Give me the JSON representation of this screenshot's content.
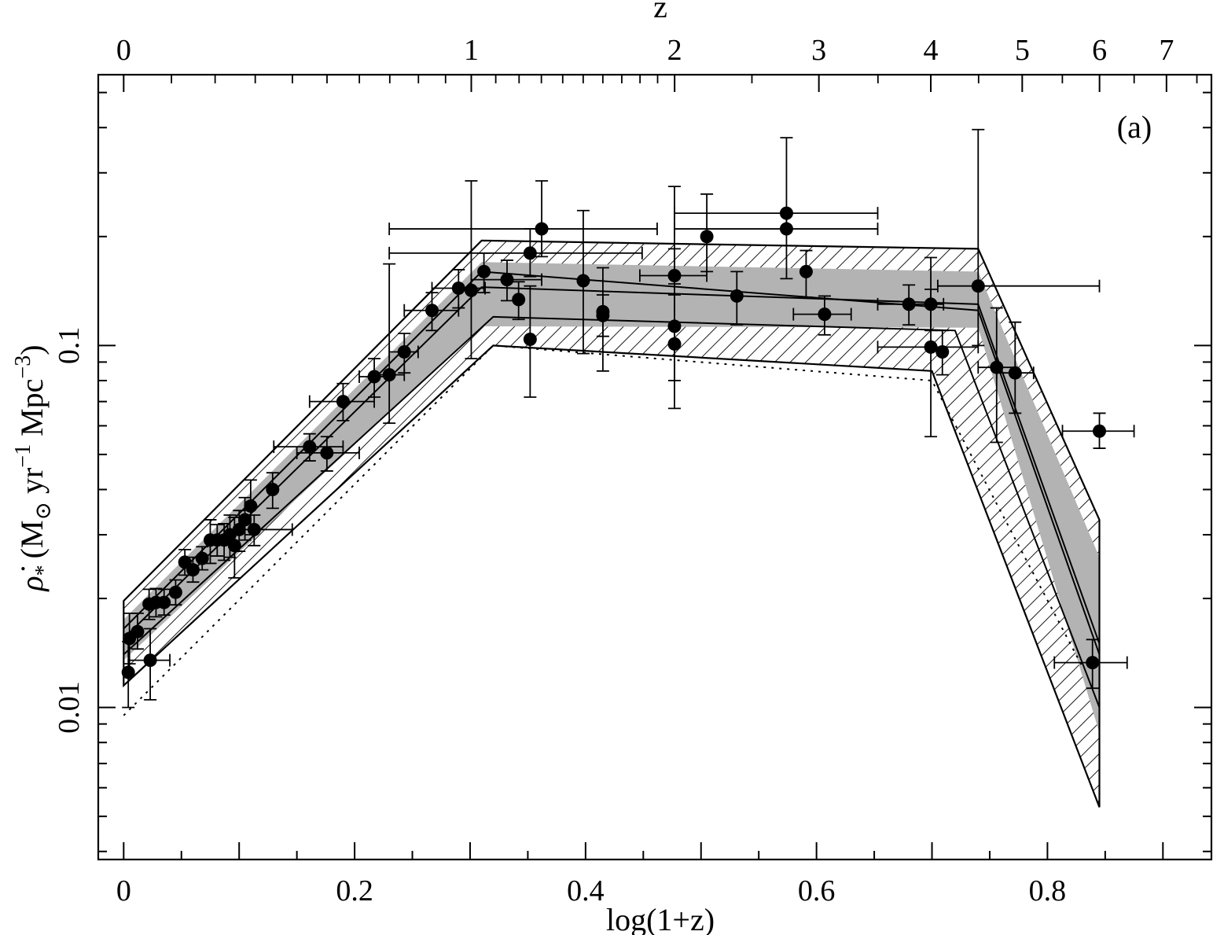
{
  "chart_data": {
    "type": "scatter",
    "title": "",
    "xlabel": "log(1+z)",
    "ylabel_parts": {
      "main": "ρ̇",
      "sub": "*",
      "units": "(M",
      "sun_sub": "⊙",
      "rest": " yr",
      "exp1": "−1",
      "mpc": " Mpc",
      "exp2": "−3",
      "close": ")"
    },
    "top_axis_label": "z",
    "panel_label": "(a)",
    "y_scale": "log",
    "xlim": [
      -0.022,
      0.942
    ],
    "ylim": [
      0.0038,
      0.56
    ],
    "x_ticks": [
      0,
      0.2,
      0.4,
      0.6,
      0.8
    ],
    "x_tick_labels": [
      "0",
      "0.2",
      "0.4",
      "0.6",
      "0.8"
    ],
    "y_tick_labels_shown": [
      {
        "value": 0.01,
        "label": "0.01"
      },
      {
        "value": 0.1,
        "label": "0.1"
      }
    ],
    "top_ticks_z": [
      0,
      1,
      2,
      3,
      4,
      5,
      6,
      7
    ],
    "top_tick_labels": [
      "0",
      "1",
      "2",
      "3",
      "4",
      "5",
      "6",
      "7"
    ],
    "points": [
      {
        "x": 0.004,
        "y": 0.0125,
        "ylo": 0.01,
        "yhi": 0.0152
      },
      {
        "x": 0.005,
        "y": 0.0155,
        "ylo": 0.0132,
        "yhi": 0.0182
      },
      {
        "x": 0.012,
        "y": 0.0162,
        "ylo": 0.0145,
        "yhi": 0.0182
      },
      {
        "x": 0.022,
        "y": 0.0193,
        "ylo": 0.0175,
        "yhi": 0.0212
      },
      {
        "x": 0.028,
        "y": 0.0195,
        "ylo": 0.0178,
        "yhi": 0.0213
      },
      {
        "x": 0.023,
        "y": 0.0135,
        "ylo": 0.0105,
        "yhi": 0.0165,
        "xlo": 0.005,
        "xhi": 0.04
      },
      {
        "x": 0.035,
        "y": 0.0195,
        "ylo": 0.018,
        "yhi": 0.0212
      },
      {
        "x": 0.045,
        "y": 0.0208,
        "ylo": 0.0192,
        "yhi": 0.0225
      },
      {
        "x": 0.053,
        "y": 0.0252,
        "ylo": 0.0232,
        "yhi": 0.0273
      },
      {
        "x": 0.06,
        "y": 0.024,
        "ylo": 0.0222,
        "yhi": 0.026
      },
      {
        "x": 0.068,
        "y": 0.0258,
        "ylo": 0.024,
        "yhi": 0.0278
      },
      {
        "x": 0.075,
        "y": 0.029,
        "ylo": 0.025,
        "yhi": 0.033
      },
      {
        "x": 0.081,
        "y": 0.029,
        "ylo": 0.0262,
        "yhi": 0.032
      },
      {
        "x": 0.087,
        "y": 0.029,
        "ylo": 0.0255,
        "yhi": 0.0322
      },
      {
        "x": 0.092,
        "y": 0.03,
        "ylo": 0.026,
        "yhi": 0.034
      },
      {
        "x": 0.096,
        "y": 0.028,
        "ylo": 0.0228,
        "yhi": 0.0335
      },
      {
        "x": 0.1,
        "y": 0.031,
        "ylo": 0.027,
        "yhi": 0.035
      },
      {
        "x": 0.105,
        "y": 0.033,
        "ylo": 0.029,
        "yhi": 0.038
      },
      {
        "x": 0.11,
        "y": 0.036,
        "ylo": 0.03,
        "yhi": 0.0425
      },
      {
        "x": 0.113,
        "y": 0.031,
        "ylo": 0.028,
        "yhi": 0.034,
        "xlo": 0.09,
        "xhi": 0.146
      },
      {
        "x": 0.129,
        "y": 0.04,
        "ylo": 0.0355,
        "yhi": 0.0445
      },
      {
        "x": 0.161,
        "y": 0.0525,
        "ylo": 0.048,
        "yhi": 0.057,
        "xlo": 0.13,
        "xhi": 0.19
      },
      {
        "x": 0.176,
        "y": 0.0505,
        "ylo": 0.045,
        "yhi": 0.056,
        "xlo": 0.15,
        "xhi": 0.204
      },
      {
        "x": 0.19,
        "y": 0.07,
        "ylo": 0.062,
        "yhi": 0.0785,
        "xlo": 0.161,
        "xhi": 0.217
      },
      {
        "x": 0.217,
        "y": 0.082,
        "ylo": 0.072,
        "yhi": 0.092,
        "xlo": 0.204,
        "xhi": 0.23
      },
      {
        "x": 0.23,
        "y": 0.083,
        "ylo": 0.061,
        "yhi": 0.168,
        "xlo": 0.217,
        "xhi": 0.243
      },
      {
        "x": 0.243,
        "y": 0.096,
        "ylo": 0.084,
        "yhi": 0.108,
        "xlo": 0.23,
        "xhi": 0.255
      },
      {
        "x": 0.267,
        "y": 0.125,
        "ylo": 0.11,
        "yhi": 0.14,
        "xlo": 0.243,
        "xhi": 0.29
      },
      {
        "x": 0.29,
        "y": 0.144,
        "ylo": 0.127,
        "yhi": 0.162,
        "xlo": 0.267,
        "xhi": 0.313
      },
      {
        "x": 0.301,
        "y": 0.142,
        "ylo": 0.092,
        "yhi": 0.285
      },
      {
        "x": 0.312,
        "y": 0.16,
        "ylo": 0.14,
        "yhi": 0.18
      },
      {
        "x": 0.332,
        "y": 0.152,
        "ylo": 0.133,
        "yhi": 0.172,
        "xlo": 0.301,
        "xhi": 0.362
      },
      {
        "x": 0.342,
        "y": 0.134,
        "ylo": 0.118,
        "yhi": 0.15
      },
      {
        "x": 0.352,
        "y": 0.18,
        "ylo": 0.155,
        "yhi": 0.21,
        "xlo": 0.23,
        "xhi": 0.449
      },
      {
        "x": 0.352,
        "y": 0.104,
        "ylo": 0.072,
        "yhi": 0.146
      },
      {
        "x": 0.362,
        "y": 0.21,
        "ylo": 0.176,
        "yhi": 0.285,
        "xlo": 0.23,
        "xhi": 0.462
      },
      {
        "x": 0.398,
        "y": 0.151,
        "ylo": 0.095,
        "yhi": 0.236
      },
      {
        "x": 0.415,
        "y": 0.124,
        "ylo": 0.085,
        "yhi": 0.164
      },
      {
        "x": 0.415,
        "y": 0.121,
        "ylo": 0.106,
        "yhi": 0.138
      },
      {
        "x": 0.477,
        "y": 0.156,
        "ylo": 0.138,
        "yhi": 0.275,
        "xlo": 0.447,
        "xhi": 0.505
      },
      {
        "x": 0.477,
        "y": 0.113,
        "ylo": 0.08,
        "yhi": 0.185
      },
      {
        "x": 0.477,
        "y": 0.101,
        "ylo": 0.067,
        "yhi": 0.148
      },
      {
        "x": 0.505,
        "y": 0.2,
        "ylo": 0.16,
        "yhi": 0.262
      },
      {
        "x": 0.531,
        "y": 0.137,
        "ylo": 0.114,
        "yhi": 0.16
      },
      {
        "x": 0.574,
        "y": 0.232,
        "ylo": 0.21,
        "yhi": 0.375,
        "xlo": 0.477,
        "xhi": 0.653
      },
      {
        "x": 0.574,
        "y": 0.21,
        "ylo": 0.153,
        "yhi": 0.235,
        "xlo": 0.477,
        "xhi": 0.653
      },
      {
        "x": 0.591,
        "y": 0.16,
        "ylo": 0.136,
        "yhi": 0.183
      },
      {
        "x": 0.607,
        "y": 0.122,
        "ylo": 0.107,
        "yhi": 0.137,
        "xlo": 0.58,
        "xhi": 0.63
      },
      {
        "x": 0.68,
        "y": 0.13,
        "ylo": 0.114,
        "yhi": 0.147,
        "xlo": 0.653,
        "xhi": 0.71
      },
      {
        "x": 0.699,
        "y": 0.13,
        "ylo": 0.11,
        "yhi": 0.175
      },
      {
        "x": 0.699,
        "y": 0.099,
        "ylo": 0.056,
        "yhi": 0.143,
        "xlo": 0.653,
        "xhi": 0.74
      },
      {
        "x": 0.709,
        "y": 0.096,
        "ylo": 0.083,
        "yhi": 0.11
      },
      {
        "x": 0.74,
        "y": 0.146,
        "ylo": 0.1,
        "yhi": 0.395,
        "xlo": 0.705,
        "xhi": 0.845
      },
      {
        "x": 0.756,
        "y": 0.087,
        "ylo": 0.054,
        "yhi": 0.127,
        "xlo": 0.74,
        "xhi": 0.772
      },
      {
        "x": 0.772,
        "y": 0.084,
        "ylo": 0.065,
        "yhi": 0.116,
        "xlo": 0.756,
        "xhi": 0.788
      },
      {
        "x": 0.845,
        "y": 0.058,
        "ylo": 0.052,
        "yhi": 0.065,
        "xlo": 0.813,
        "xhi": 0.875
      },
      {
        "x": 0.839,
        "y": 0.0133,
        "ylo": 0.0113,
        "yhi": 0.0154,
        "xlo": 0.806,
        "xhi": 0.869
      }
    ],
    "outer_hatched_band": {
      "upper": [
        [
          0.0,
          0.0197
        ],
        [
          0.31,
          0.195
        ],
        [
          0.74,
          0.185
        ],
        [
          0.845,
          0.033
        ]
      ],
      "lower": [
        [
          0.0,
          0.0115
        ],
        [
          0.32,
          0.1
        ],
        [
          0.7,
          0.085
        ],
        [
          0.845,
          0.0053
        ]
      ]
    },
    "inner_gray_band": {
      "upper": [
        [
          0.0,
          0.0175
        ],
        [
          0.31,
          0.17
        ],
        [
          0.74,
          0.16
        ],
        [
          0.845,
          0.026
        ]
      ],
      "lower": [
        [
          0.0,
          0.0135
        ],
        [
          0.31,
          0.113
        ],
        [
          0.74,
          0.112
        ],
        [
          0.845,
          0.0085
        ]
      ]
    },
    "model_lines": [
      [
        [
          0.0,
          0.0155
        ],
        [
          0.31,
          0.145
        ],
        [
          0.74,
          0.13
        ],
        [
          0.845,
          0.015
        ]
      ],
      [
        [
          0.0,
          0.0165
        ],
        [
          0.31,
          0.16
        ],
        [
          0.74,
          0.125
        ],
        [
          0.845,
          0.014
        ]
      ],
      [
        [
          0.0,
          0.014
        ],
        [
          0.32,
          0.12
        ],
        [
          0.72,
          0.11
        ],
        [
          0.845,
          0.01
        ]
      ]
    ],
    "dotted_line": [
      [
        0.0,
        0.0095
      ],
      [
        0.32,
        0.1
      ],
      [
        0.7,
        0.08
      ],
      [
        0.83,
        0.013
      ]
    ],
    "grid": false,
    "legend": "none"
  }
}
